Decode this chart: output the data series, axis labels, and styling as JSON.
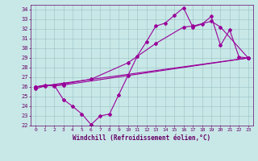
{
  "xlabel": "Windchill (Refroidissement éolien,°C)",
  "bg_color": "#c8e8e8",
  "line_color": "#990099",
  "xlim": [
    -0.5,
    23.5
  ],
  "ylim": [
    22,
    34.5
  ],
  "xticks": [
    0,
    1,
    2,
    3,
    4,
    5,
    6,
    7,
    8,
    9,
    10,
    11,
    12,
    13,
    14,
    15,
    16,
    17,
    18,
    19,
    20,
    21,
    22,
    23
  ],
  "yticks": [
    22,
    23,
    24,
    25,
    26,
    27,
    28,
    29,
    30,
    31,
    32,
    33,
    34
  ],
  "series1_x": [
    0,
    1,
    2,
    3,
    4,
    5,
    6,
    7,
    8,
    9,
    10,
    11,
    12,
    13,
    14,
    15,
    16,
    17,
    18,
    19,
    20,
    21,
    22,
    23
  ],
  "series1_y": [
    25.8,
    26.1,
    26.2,
    24.7,
    24.0,
    23.2,
    22.1,
    23.0,
    23.2,
    25.2,
    27.2,
    29.2,
    30.7,
    32.3,
    32.6,
    33.4,
    34.2,
    32.2,
    32.5,
    33.3,
    30.3,
    31.9,
    29.1,
    29.0
  ],
  "series2_x": [
    0,
    1,
    2,
    3,
    23
  ],
  "series2_y": [
    26.0,
    26.2,
    26.1,
    26.2,
    29.0
  ],
  "series3_x": [
    0,
    23
  ],
  "series3_y": [
    26.0,
    29.0
  ],
  "series4_x": [
    0,
    3,
    6,
    10,
    13,
    16,
    17,
    19,
    20,
    23
  ],
  "series4_y": [
    26.0,
    26.3,
    26.8,
    28.5,
    30.5,
    32.2,
    32.3,
    32.8,
    32.2,
    29.0
  ]
}
